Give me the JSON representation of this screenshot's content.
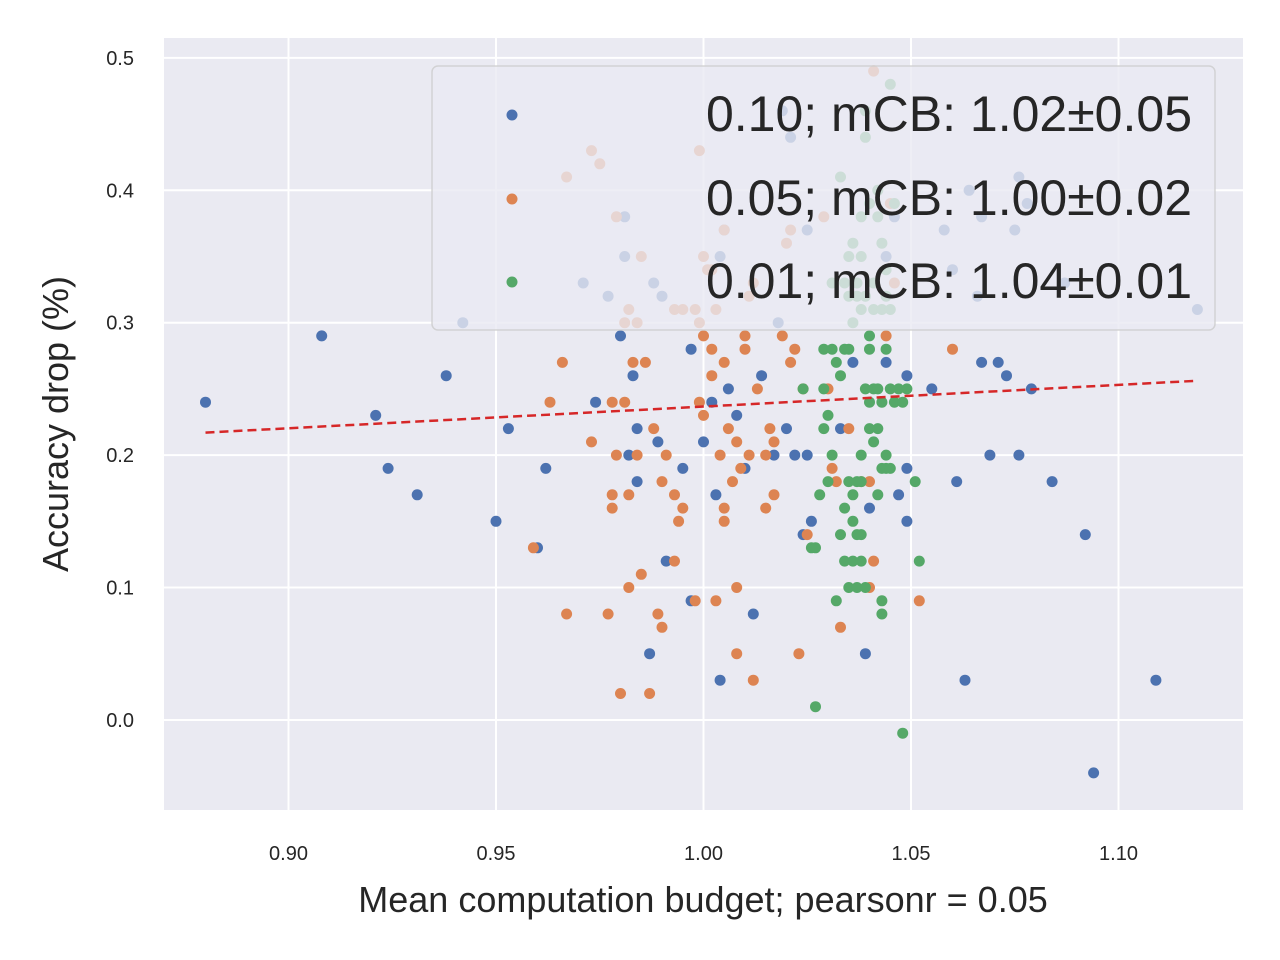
{
  "chart_data": {
    "type": "scatter",
    "title": "",
    "xlabel": "Mean computation budget; pearsonr = 0.05",
    "ylabel": "Accuracy drop (%)",
    "xlim": [
      0.87,
      1.13
    ],
    "ylim": [
      -0.068,
      0.515
    ],
    "xticks": [
      0.9,
      0.95,
      1.0,
      1.05,
      1.1
    ],
    "xtick_labels": [
      "0.90",
      "0.95",
      "1.00",
      "1.05",
      "1.10"
    ],
    "yticks": [
      0.0,
      0.1,
      0.2,
      0.3,
      0.4,
      0.5
    ],
    "ytick_labels": [
      "0.0",
      "0.1",
      "0.2",
      "0.3",
      "0.4",
      "0.5"
    ],
    "grid": true,
    "legend_position": "top-right",
    "trendline": {
      "name": "linear fit",
      "color": "#d62728",
      "style": "dashed",
      "x": [
        0.88,
        1.118
      ],
      "y": [
        0.217,
        0.256
      ]
    },
    "series": [
      {
        "name": "0.10; mCB: 1.02±0.05",
        "color": "#4c72b0",
        "points": [
          [
            0.88,
            0.24
          ],
          [
            0.908,
            0.29
          ],
          [
            0.921,
            0.23
          ],
          [
            0.924,
            0.19
          ],
          [
            0.931,
            0.17
          ],
          [
            0.938,
            0.26
          ],
          [
            0.95,
            0.15
          ],
          [
            0.953,
            0.22
          ],
          [
            0.96,
            0.13
          ],
          [
            0.962,
            0.19
          ],
          [
            0.974,
            0.24
          ],
          [
            0.98,
            0.29
          ],
          [
            0.982,
            0.2
          ],
          [
            0.983,
            0.26
          ],
          [
            0.984,
            0.22
          ],
          [
            0.984,
            0.18
          ],
          [
            0.987,
            0.05
          ],
          [
            0.989,
            0.21
          ],
          [
            0.991,
            0.12
          ],
          [
            0.995,
            0.19
          ],
          [
            0.997,
            0.28
          ],
          [
            0.997,
            0.09
          ],
          [
            1.002,
            0.24
          ],
          [
            1.003,
            0.17
          ],
          [
            1.004,
            0.03
          ],
          [
            1.006,
            0.25
          ],
          [
            1.008,
            0.23
          ],
          [
            1.01,
            0.19
          ],
          [
            1.012,
            0.08
          ],
          [
            1.014,
            0.26
          ],
          [
            1.017,
            0.2
          ],
          [
            1.02,
            0.22
          ],
          [
            1.022,
            0.2
          ],
          [
            1.024,
            0.14
          ],
          [
            1.025,
            0.2
          ],
          [
            1.026,
            0.15
          ],
          [
            1.036,
            0.27
          ],
          [
            1.039,
            0.05
          ],
          [
            1.04,
            0.16
          ],
          [
            1.047,
            0.17
          ],
          [
            1.049,
            0.26
          ],
          [
            1.049,
            0.19
          ],
          [
            1.049,
            0.15
          ],
          [
            1.061,
            0.18
          ],
          [
            1.063,
            0.03
          ],
          [
            1.067,
            0.27
          ],
          [
            1.069,
            0.2
          ],
          [
            1.071,
            0.27
          ],
          [
            1.073,
            0.26
          ],
          [
            1.076,
            0.2
          ],
          [
            1.079,
            0.25
          ],
          [
            1.084,
            0.18
          ],
          [
            1.092,
            0.14
          ],
          [
            1.094,
            -0.04
          ],
          [
            1.109,
            0.03
          ],
          [
            1.055,
            0.25
          ],
          [
            1.033,
            0.22
          ],
          [
            1.044,
            0.27
          ],
          [
            1.0,
            0.21
          ],
          [
            0.942,
            0.3
          ],
          [
            0.971,
            0.33
          ],
          [
            0.977,
            0.32
          ],
          [
            0.981,
            0.38
          ],
          [
            0.981,
            0.35
          ],
          [
            0.988,
            0.33
          ],
          [
            0.99,
            0.32
          ],
          [
            1.004,
            0.35
          ],
          [
            1.005,
            0.37
          ],
          [
            1.018,
            0.3
          ],
          [
            1.019,
            0.46
          ],
          [
            1.021,
            0.44
          ],
          [
            1.025,
            0.37
          ],
          [
            1.046,
            0.38
          ],
          [
            1.06,
            0.34
          ],
          [
            1.058,
            0.37
          ],
          [
            1.064,
            0.4
          ],
          [
            1.066,
            0.32
          ],
          [
            1.067,
            0.38
          ],
          [
            1.075,
            0.37
          ],
          [
            1.076,
            0.41
          ],
          [
            1.078,
            0.39
          ],
          [
            1.087,
            0.33
          ],
          [
            1.119,
            0.31
          ],
          [
            1.044,
            0.35
          ]
        ]
      },
      {
        "name": "0.05; mCB: 1.00±0.02",
        "color": "#dd8452",
        "points": [
          [
            0.959,
            0.13
          ],
          [
            0.963,
            0.24
          ],
          [
            0.966,
            0.27
          ],
          [
            0.967,
            0.08
          ],
          [
            0.973,
            0.21
          ],
          [
            0.977,
            0.08
          ],
          [
            0.978,
            0.17
          ],
          [
            0.978,
            0.16
          ],
          [
            0.978,
            0.24
          ],
          [
            0.979,
            0.2
          ],
          [
            0.98,
            0.02
          ],
          [
            0.981,
            0.24
          ],
          [
            0.982,
            0.1
          ],
          [
            0.982,
            0.17
          ],
          [
            0.983,
            0.27
          ],
          [
            0.984,
            0.2
          ],
          [
            0.985,
            0.11
          ],
          [
            0.986,
            0.27
          ],
          [
            0.987,
            0.02
          ],
          [
            0.988,
            0.22
          ],
          [
            0.989,
            0.08
          ],
          [
            0.99,
            0.18
          ],
          [
            0.99,
            0.07
          ],
          [
            0.991,
            0.2
          ],
          [
            0.993,
            0.12
          ],
          [
            0.993,
            0.17
          ],
          [
            0.994,
            0.15
          ],
          [
            0.995,
            0.16
          ],
          [
            0.998,
            0.09
          ],
          [
            1.0,
            0.23
          ],
          [
            0.999,
            0.24
          ],
          [
            1.0,
            0.29
          ],
          [
            1.001,
            0.34
          ],
          [
            1.002,
            0.28
          ],
          [
            1.002,
            0.26
          ],
          [
            1.004,
            0.2
          ],
          [
            1.005,
            0.27
          ],
          [
            1.005,
            0.16
          ],
          [
            1.005,
            0.15
          ],
          [
            1.006,
            0.22
          ],
          [
            1.007,
            0.18
          ],
          [
            1.008,
            0.1
          ],
          [
            1.008,
            0.05
          ],
          [
            1.008,
            0.21
          ],
          [
            1.009,
            0.19
          ],
          [
            1.01,
            0.29
          ],
          [
            1.01,
            0.28
          ],
          [
            1.011,
            0.2
          ],
          [
            1.012,
            0.03
          ],
          [
            1.013,
            0.25
          ],
          [
            1.015,
            0.2
          ],
          [
            1.015,
            0.16
          ],
          [
            1.016,
            0.22
          ],
          [
            1.017,
            0.17
          ],
          [
            1.017,
            0.21
          ],
          [
            1.019,
            0.29
          ],
          [
            1.021,
            0.27
          ],
          [
            1.022,
            0.28
          ],
          [
            1.023,
            0.05
          ],
          [
            1.024,
            0.25
          ],
          [
            1.025,
            0.14
          ],
          [
            1.03,
            0.25
          ],
          [
            1.031,
            0.19
          ],
          [
            1.032,
            0.18
          ],
          [
            1.033,
            0.07
          ],
          [
            1.035,
            0.22
          ],
          [
            1.038,
            0.18
          ],
          [
            1.04,
            0.18
          ],
          [
            1.041,
            0.12
          ],
          [
            1.044,
            0.29
          ],
          [
            1.052,
            0.09
          ],
          [
            1.06,
            0.28
          ],
          [
            1.003,
            0.09
          ],
          [
            1.04,
            0.1
          ],
          [
            0.967,
            0.41
          ],
          [
            0.973,
            0.43
          ],
          [
            0.975,
            0.42
          ],
          [
            0.979,
            0.38
          ],
          [
            0.981,
            0.3
          ],
          [
            0.982,
            0.31
          ],
          [
            0.984,
            0.3
          ],
          [
            0.985,
            0.35
          ],
          [
            0.993,
            0.31
          ],
          [
            0.995,
            0.31
          ],
          [
            0.998,
            0.31
          ],
          [
            0.999,
            0.3
          ],
          [
            0.999,
            0.43
          ],
          [
            1.0,
            0.35
          ],
          [
            1.002,
            0.34
          ],
          [
            1.003,
            0.31
          ],
          [
            1.005,
            0.37
          ],
          [
            1.011,
            0.32
          ],
          [
            1.012,
            0.33
          ],
          [
            1.02,
            0.36
          ],
          [
            1.021,
            0.37
          ],
          [
            1.029,
            0.38
          ],
          [
            1.041,
            0.49
          ],
          [
            1.045,
            0.39
          ],
          [
            1.046,
            0.33
          ]
        ]
      },
      {
        "name": "0.01; mCB: 1.04±0.01",
        "color": "#55a868",
        "points": [
          [
            1.024,
            0.25
          ],
          [
            1.026,
            0.13
          ],
          [
            1.027,
            0.13
          ],
          [
            1.027,
            0.01
          ],
          [
            1.028,
            0.17
          ],
          [
            1.029,
            0.28
          ],
          [
            1.029,
            0.22
          ],
          [
            1.029,
            0.25
          ],
          [
            1.03,
            0.18
          ],
          [
            1.03,
            0.23
          ],
          [
            1.031,
            0.28
          ],
          [
            1.031,
            0.2
          ],
          [
            1.032,
            0.27
          ],
          [
            1.032,
            0.09
          ],
          [
            1.033,
            0.14
          ],
          [
            1.033,
            0.26
          ],
          [
            1.034,
            0.12
          ],
          [
            1.034,
            0.28
          ],
          [
            1.034,
            0.16
          ],
          [
            1.035,
            0.1
          ],
          [
            1.035,
            0.28
          ],
          [
            1.035,
            0.18
          ],
          [
            1.036,
            0.12
          ],
          [
            1.036,
            0.17
          ],
          [
            1.036,
            0.15
          ],
          [
            1.037,
            0.14
          ],
          [
            1.037,
            0.1
          ],
          [
            1.037,
            0.18
          ],
          [
            1.038,
            0.12
          ],
          [
            1.038,
            0.14
          ],
          [
            1.038,
            0.2
          ],
          [
            1.038,
            0.18
          ],
          [
            1.039,
            0.25
          ],
          [
            1.039,
            0.1
          ],
          [
            1.04,
            0.29
          ],
          [
            1.04,
            0.28
          ],
          [
            1.04,
            0.22
          ],
          [
            1.04,
            0.24
          ],
          [
            1.041,
            0.25
          ],
          [
            1.041,
            0.21
          ],
          [
            1.042,
            0.17
          ],
          [
            1.042,
            0.25
          ],
          [
            1.042,
            0.22
          ],
          [
            1.043,
            0.24
          ],
          [
            1.043,
            0.09
          ],
          [
            1.043,
            0.19
          ],
          [
            1.043,
            0.08
          ],
          [
            1.044,
            0.28
          ],
          [
            1.044,
            0.2
          ],
          [
            1.044,
            0.19
          ],
          [
            1.045,
            0.25
          ],
          [
            1.045,
            0.19
          ],
          [
            1.046,
            0.24
          ],
          [
            1.047,
            0.25
          ],
          [
            1.048,
            0.24
          ],
          [
            1.048,
            -0.01
          ],
          [
            1.049,
            0.25
          ],
          [
            1.051,
            0.18
          ],
          [
            1.052,
            0.12
          ],
          [
            1.031,
            0.33
          ],
          [
            1.033,
            0.41
          ],
          [
            1.034,
            0.33
          ],
          [
            1.035,
            0.35
          ],
          [
            1.035,
            0.32
          ],
          [
            1.036,
            0.3
          ],
          [
            1.036,
            0.36
          ],
          [
            1.037,
            0.33
          ],
          [
            1.037,
            0.32
          ],
          [
            1.038,
            0.35
          ],
          [
            1.038,
            0.31
          ],
          [
            1.038,
            0.38
          ],
          [
            1.039,
            0.44
          ],
          [
            1.039,
            0.32
          ],
          [
            1.04,
            0.39
          ],
          [
            1.041,
            0.33
          ],
          [
            1.041,
            0.31
          ],
          [
            1.042,
            0.38
          ],
          [
            1.042,
            0.4
          ],
          [
            1.043,
            0.31
          ],
          [
            1.043,
            0.36
          ],
          [
            1.044,
            0.32
          ],
          [
            1.044,
            0.34
          ],
          [
            1.045,
            0.31
          ],
          [
            1.045,
            0.48
          ],
          [
            1.046,
            0.39
          ],
          [
            1.039,
            0.46
          ]
        ]
      }
    ]
  }
}
